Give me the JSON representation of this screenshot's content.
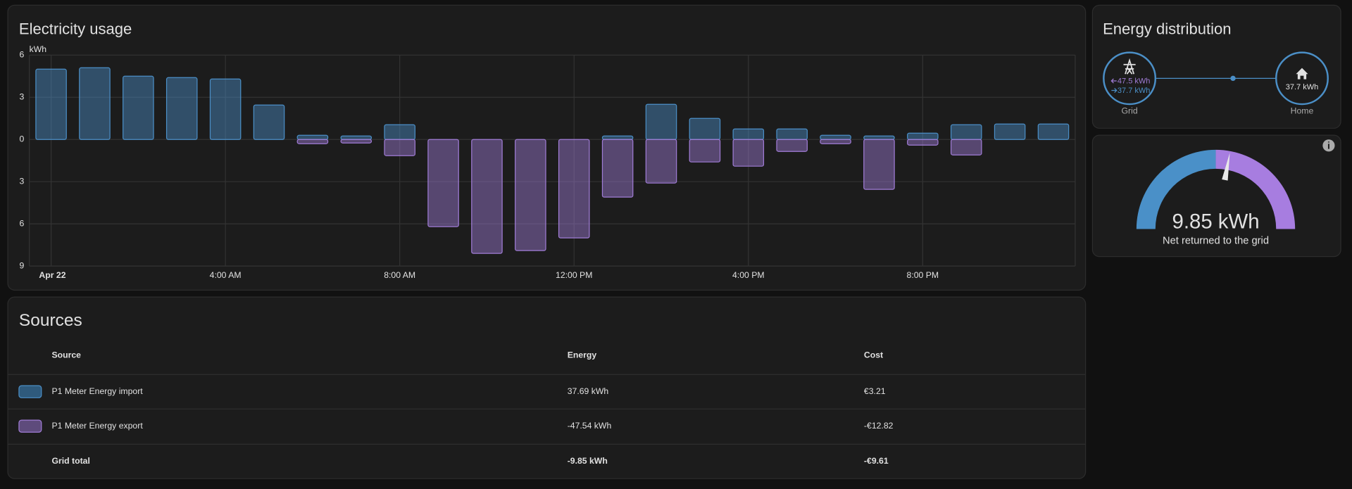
{
  "chart_data": {
    "type": "bar",
    "title": "Electricity usage",
    "y_label": "kWh",
    "categories": [
      "Apr 22",
      null,
      null,
      null,
      "4:00 AM",
      null,
      null,
      null,
      "8:00 AM",
      null,
      null,
      null,
      "12:00 PM",
      null,
      null,
      null,
      "4:00 PM",
      null,
      null,
      null,
      "8:00 PM",
      null,
      null,
      null
    ],
    "series": [
      {
        "color": "#4b8fc7",
        "values": [
          5.0,
          5.1,
          4.5,
          4.4,
          4.3,
          2.45,
          0.3,
          0.25,
          1.05,
          0,
          0,
          0,
          0,
          0.25,
          2.5,
          1.5,
          0.75,
          0.75,
          0.3,
          0.25,
          0.45,
          1.05,
          1.1,
          1.1
        ]
      },
      {
        "color": "#a07cd6",
        "values": [
          0,
          0,
          0,
          0,
          0,
          0,
          -0.3,
          -0.25,
          -1.15,
          -6.2,
          -8.1,
          -7.9,
          -7.0,
          -4.1,
          -3.1,
          -1.6,
          -1.9,
          -0.85,
          -0.3,
          -3.55,
          -0.4,
          -1.1,
          0,
          0
        ]
      }
    ],
    "ylim": [
      -9,
      6
    ],
    "yticks": [
      6,
      3,
      0,
      {
        "value": -3,
        "label": "3"
      },
      {
        "value": -6,
        "label": "6"
      },
      {
        "value": -9,
        "label": "9"
      }
    ],
    "grid": true
  },
  "sources": {
    "title": "Sources",
    "headers": [
      "Source",
      "Energy",
      "Cost"
    ],
    "rows": [
      [
        "P1 Meter Energy import",
        "37.69 kWh",
        "€3.21"
      ],
      [
        "P1 Meter Energy export",
        "-47.54 kWh",
        "-€12.82"
      ]
    ],
    "total": [
      "Grid total",
      "-9.85 kWh",
      "-€9.61"
    ]
  },
  "distribution": {
    "title": "Energy distribution",
    "grid_export": "47.5 kWh",
    "grid_import": "37.7 kWh",
    "grid_label": "Grid",
    "home_value": "37.7 kWh",
    "home_label": "Home"
  },
  "gauge": {
    "value_label": "9.85 kWh",
    "subtitle": "Net returned to the grid",
    "needle": 55.8,
    "range": [
      0,
      100
    ],
    "split": 50
  }
}
